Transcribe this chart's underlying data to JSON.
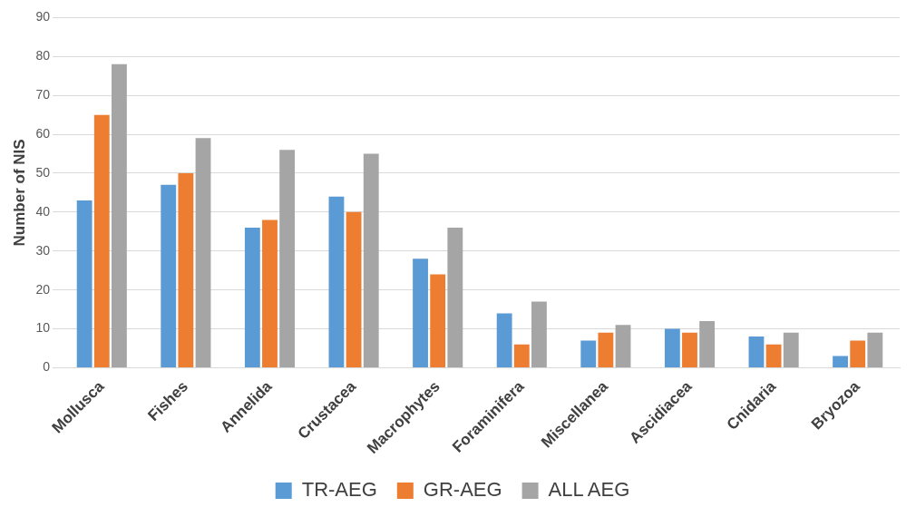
{
  "chart_data": {
    "type": "bar",
    "ylabel": "Number of NIS",
    "categories": [
      "Mollusca",
      "Fishes",
      "Annelida",
      "Crustacea",
      "Macrophytes",
      "Foraminifera",
      "Miscellanea",
      "Ascidiacea",
      "Cnidaria",
      "Bryozoa"
    ],
    "series": [
      {
        "name": "TR-AEG",
        "color": "#5b9bd5",
        "values": [
          43,
          47,
          36,
          44,
          28,
          14,
          7,
          10,
          8,
          3
        ]
      },
      {
        "name": "GR-AEG",
        "color": "#ed7d31",
        "values": [
          65,
          50,
          38,
          40,
          24,
          6,
          9,
          9,
          6,
          7
        ]
      },
      {
        "name": "ALL AEG",
        "color": "#a5a5a5",
        "values": [
          78,
          59,
          56,
          55,
          36,
          17,
          11,
          12,
          9,
          9
        ]
      }
    ],
    "ylim": [
      0,
      90
    ],
    "yticks": [
      0,
      10,
      20,
      30,
      40,
      50,
      60,
      70,
      80,
      90
    ],
    "grid": "y",
    "legend": "bottom"
  }
}
